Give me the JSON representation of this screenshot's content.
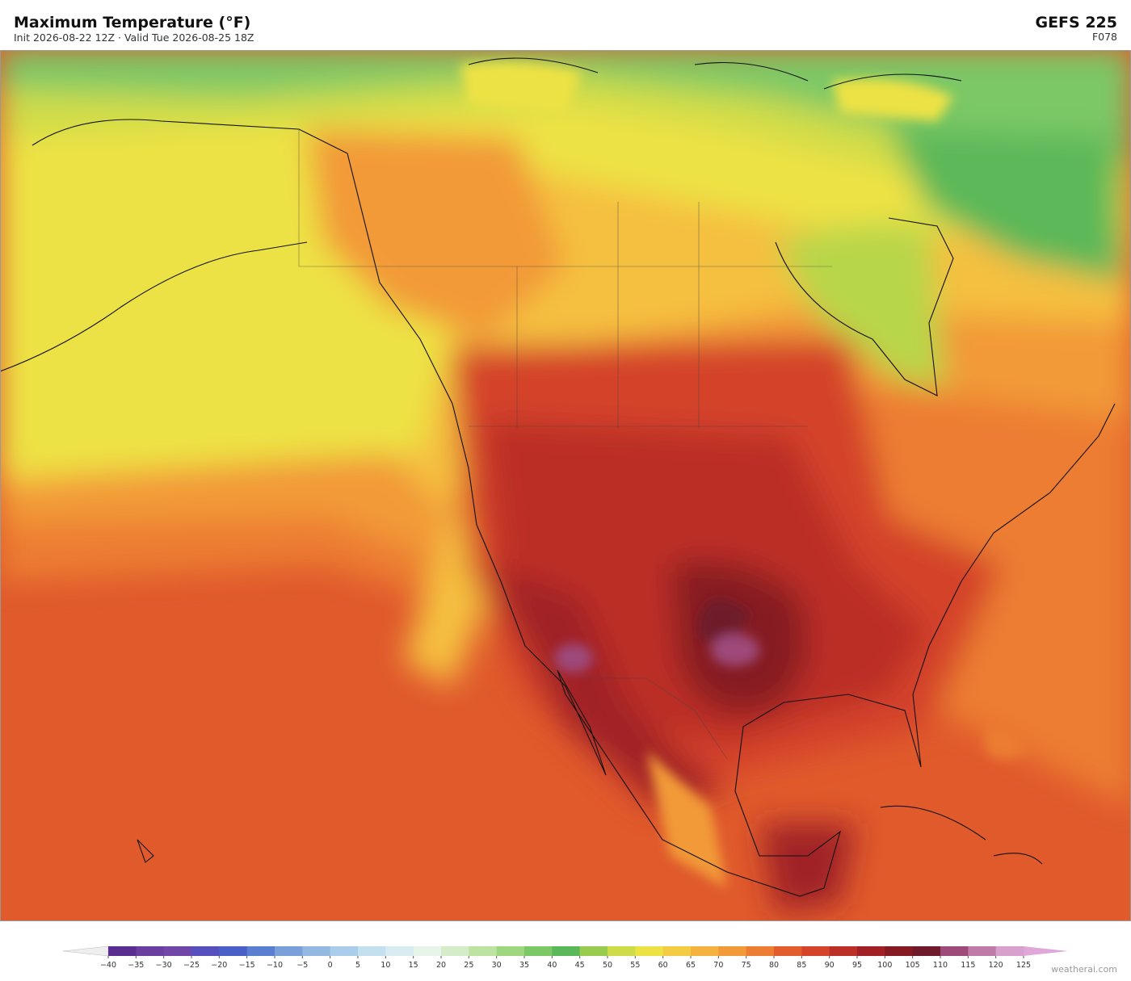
{
  "header": {
    "title": "Maximum Temperature  (°F)",
    "subtitle": "Init 2026-08-22 12Z   ·   Valid Tue 2026-08-25 18Z",
    "model": "GEFS  225",
    "forecast_hour": "F078"
  },
  "colorbar": {
    "labels": [
      "−40",
      "−35",
      "−30",
      "−25",
      "−20",
      "−15",
      "−10",
      "−5",
      "0",
      "5",
      "10",
      "15",
      "20",
      "25",
      "30",
      "35",
      "40",
      "45",
      "50",
      "55",
      "60",
      "65",
      "70",
      "75",
      "80",
      "85",
      "90",
      "95",
      "100",
      "105",
      "110",
      "115",
      "120",
      "125"
    ],
    "colors": [
      "#5a2d91",
      "#6b3fa0",
      "#7047a8",
      "#5550bd",
      "#4a5fc8",
      "#5b7fd0",
      "#7aa0da",
      "#93b9e2",
      "#a9cdea",
      "#c3e0f0",
      "#d8ecf2",
      "#e6f4ea",
      "#d5ecc8",
      "#bde3a0",
      "#9fd77e",
      "#7cc866",
      "#5bb858",
      "#99cc4e",
      "#cfdc4a",
      "#ede244",
      "#f4cc44",
      "#f5b23e",
      "#f29a38",
      "#ec7d33",
      "#e35c2b",
      "#d4432a",
      "#bb2f27",
      "#a02026",
      "#861a22",
      "#6e1a2a",
      "#9e4a7a",
      "#c07aaa",
      "#d8a0cc"
    ]
  },
  "footer": {
    "credit": "weatherai.com"
  }
}
